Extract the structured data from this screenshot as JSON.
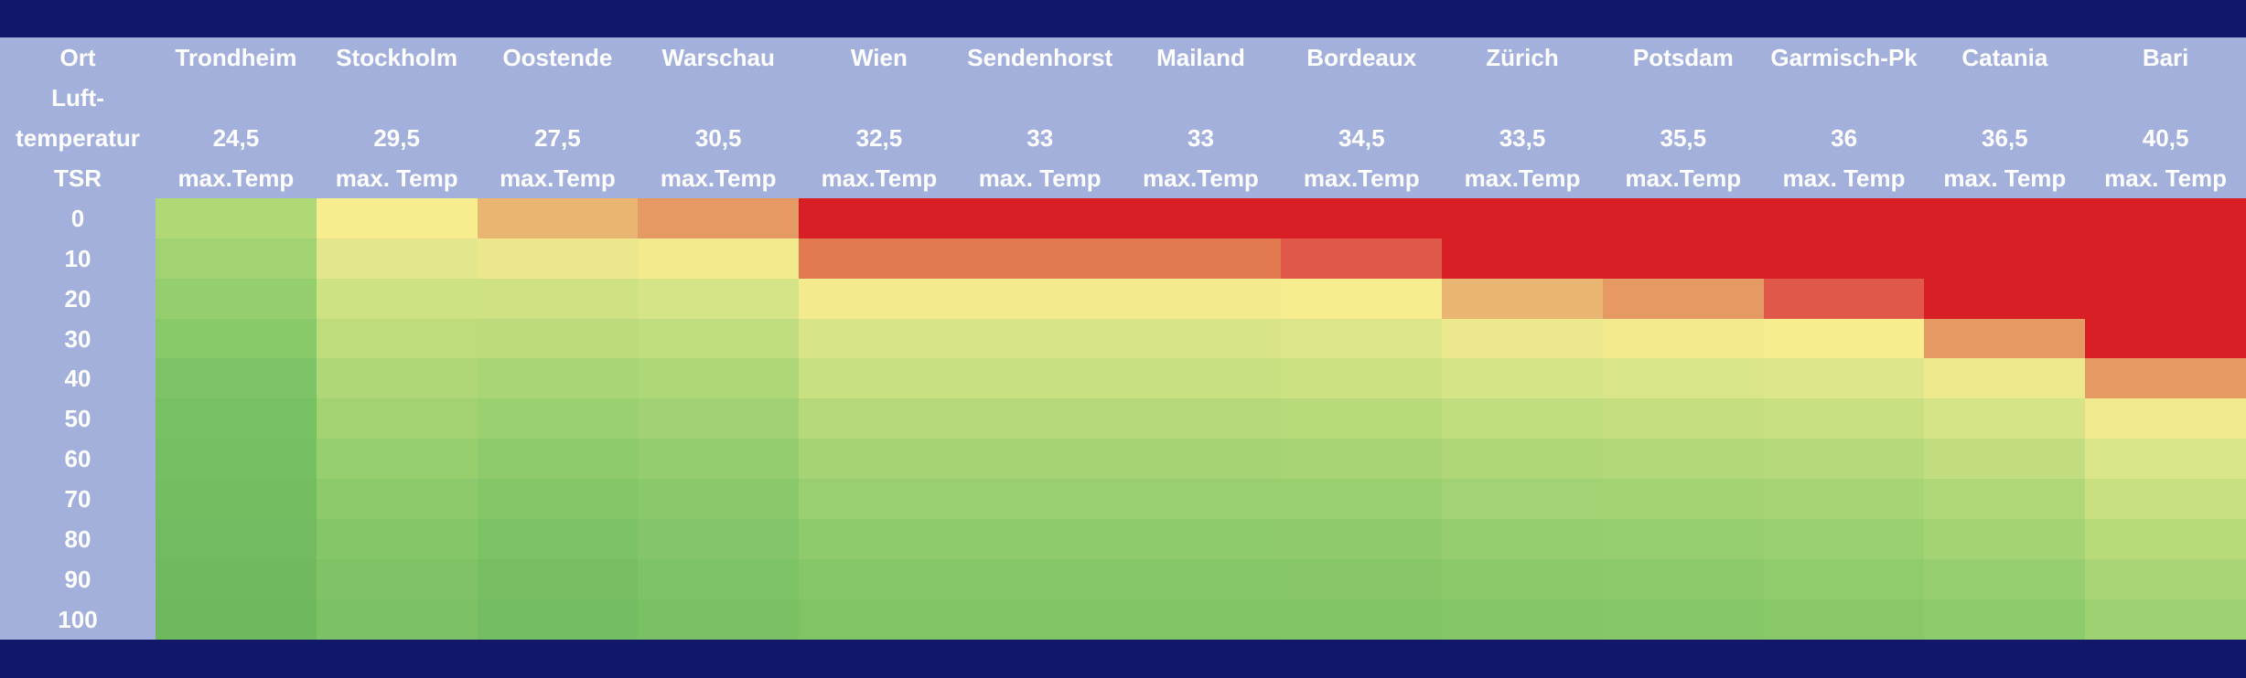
{
  "table": {
    "corner": [
      "Ort",
      "Luft-",
      "temperatur",
      "TSR"
    ],
    "tsr": [
      0,
      10,
      20,
      30,
      40,
      50,
      60,
      70,
      80,
      90,
      100
    ],
    "columns": [
      {
        "name": "Trondheim",
        "temperature": "24,5",
        "label": "max.Temp",
        "colors": [
          "#b0d877",
          "#a2d372",
          "#94ce6d",
          "#88c96a",
          "#7ec466",
          "#78c163",
          "#76bf62",
          "#74bd61",
          "#72bb60",
          "#70b95f",
          "#6fb85e"
        ]
      },
      {
        "name": "Stockholm",
        "temperature": "29,5",
        "label": "max. Temp",
        "colors": [
          "#f7ec8e",
          "#e3e68c",
          "#cde282",
          "#bfdc7d",
          "#b0d777",
          "#a3d272",
          "#97ce6e",
          "#8dca6b",
          "#85c668",
          "#80c366",
          "#7cc164"
        ]
      },
      {
        "name": "Oostende",
        "temperature": "27,5",
        "label": "max.Temp",
        "colors": [
          "#e8b572",
          "#ece78d",
          "#cee283",
          "#bddb7c",
          "#a9d576",
          "#9ad070",
          "#8ecb6c",
          "#84c668",
          "#7dc265",
          "#78bf63",
          "#74bd62"
        ]
      },
      {
        "name": "Warschau",
        "temperature": "30,5",
        "label": "max.Temp",
        "colors": [
          "#e59a63",
          "#f3ea8d",
          "#d4e486",
          "#c0dd7f",
          "#aed778",
          "#a0d173",
          "#94cd6f",
          "#8ac96b",
          "#83c568",
          "#7ec366",
          "#7ac164"
        ]
      },
      {
        "name": "Wien",
        "temperature": "32,5",
        "label": "max.Temp",
        "colors": [
          "#d81f26",
          "#e27a50",
          "#f3ea8d",
          "#d9e489",
          "#c8e081",
          "#b5d97a",
          "#a6d475",
          "#99cf70",
          "#8ecb6c",
          "#86c769",
          "#80c466"
        ]
      },
      {
        "name": "Sendenhorst",
        "temperature": "33",
        "label": "max. Temp",
        "colors": [
          "#d81f26",
          "#e27a50",
          "#f3ea8d",
          "#d9e489",
          "#c8e081",
          "#b5d97a",
          "#a6d475",
          "#99cf70",
          "#8ecb6c",
          "#86c769",
          "#80c466"
        ]
      },
      {
        "name": "Mailand",
        "temperature": "33",
        "label": "max.Temp",
        "colors": [
          "#d81f26",
          "#e27a50",
          "#f3ea8d",
          "#d9e489",
          "#c8e081",
          "#b5d97a",
          "#a6d475",
          "#99cf70",
          "#8ecb6c",
          "#86c769",
          "#80c466"
        ]
      },
      {
        "name": "Bordeaux",
        "temperature": "34,5",
        "label": "max.Temp",
        "colors": [
          "#d81f26",
          "#e0584a",
          "#f7ec8e",
          "#dde68a",
          "#cbe182",
          "#b8da7b",
          "#a8d475",
          "#9ad070",
          "#8fcb6c",
          "#87c769",
          "#81c567"
        ]
      },
      {
        "name": "Zürich",
        "temperature": "33,5",
        "label": "max.Temp",
        "colors": [
          "#d81f26",
          "#d81f26",
          "#e8b572",
          "#ebe88d",
          "#d4e486",
          "#c0dd7f",
          "#afd778",
          "#a1d273",
          "#95cd6f",
          "#8bca6b",
          "#84c668"
        ]
      },
      {
        "name": "Potsdam",
        "temperature": "35,5",
        "label": "max.Temp",
        "colors": [
          "#d81f26",
          "#d81f26",
          "#e59a63",
          "#f3ea8d",
          "#dae589",
          "#c5df80",
          "#b3d87a",
          "#a4d374",
          "#97ce6f",
          "#8dca6c",
          "#85c769"
        ]
      },
      {
        "name": "Garmisch-Pk",
        "temperature": "36",
        "label": "max. Temp",
        "colors": [
          "#d81f26",
          "#d81f26",
          "#e0584a",
          "#f7ec8e",
          "#dde68a",
          "#c8e081",
          "#b6d97b",
          "#a7d475",
          "#9ad070",
          "#90cb6c",
          "#88c869"
        ]
      },
      {
        "name": "Catania",
        "temperature": "36,5",
        "label": "max. Temp",
        "colors": [
          "#d81f26",
          "#d81f26",
          "#d81f26",
          "#e59a63",
          "#ede98d",
          "#d4e486",
          "#c1dd7f",
          "#b1d878",
          "#a3d373",
          "#97ce6f",
          "#8ecb6c"
        ]
      },
      {
        "name": "Bari",
        "temperature": "40,5",
        "label": "max. Temp",
        "colors": [
          "#d81f26",
          "#d81f26",
          "#d81f26",
          "#d81f26",
          "#e59a63",
          "#f0e98d",
          "#dbe589",
          "#c8e081",
          "#b8da7b",
          "#aad576",
          "#9dd171"
        ]
      }
    ]
  }
}
